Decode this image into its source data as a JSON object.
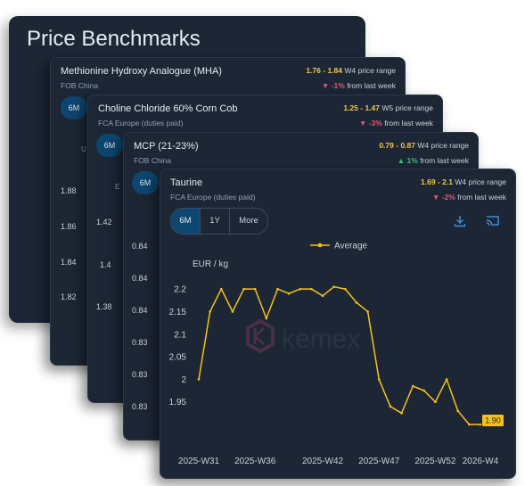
{
  "page": {
    "title": "Price Benchmarks"
  },
  "cards": [
    {
      "name": "Methionine Hydroxy Analogue (MHA)",
      "location": "FOB China",
      "range_low": "1.76",
      "range_high": "1.84",
      "range_suffix": "W4 price range",
      "change_arrow": "▼",
      "change_pct": "-1%",
      "change_suffix": "from last week",
      "tab": "6M",
      "y_ticks": [
        "1.88",
        "1.86",
        "1.84",
        "1.82"
      ]
    },
    {
      "name": "Choline Chloride 60% Corn Cob",
      "location": "FCA Europe (duties paid)",
      "range_low": "1.25",
      "range_high": "1.47",
      "range_suffix": "W5 price range",
      "change_arrow": "▼",
      "change_pct": "-3%",
      "change_suffix": "from last week",
      "tab": "6M",
      "y_ticks": [
        "1.42",
        "1.4",
        "1.38"
      ]
    },
    {
      "name": "MCP (21-23%)",
      "location": "FOB China",
      "range_low": "0.79",
      "range_high": "0.87",
      "range_suffix": "W4 price range",
      "change_arrow": "▲",
      "change_pct": "1%",
      "change_suffix": "from last week",
      "tab": "6M",
      "y_ticks": [
        "0.84",
        "0.84",
        "0.84",
        "0.83",
        "0.83",
        "0.83"
      ]
    },
    {
      "name": "Taurine",
      "location": "FCA Europe (duties paid)",
      "range_low": "1.69",
      "range_high": "2.1",
      "range_suffix": "W4 price range",
      "change_arrow": "▼",
      "change_pct": "-2%",
      "change_suffix": "from last week"
    }
  ],
  "tabs": [
    "6M",
    "1Y",
    "More"
  ],
  "icons": {
    "download": "download-icon",
    "cast": "cast-icon"
  },
  "watermark": {
    "brand": "kemex"
  },
  "colors": {
    "panel_bg": "#1c2635",
    "line": "#f5c21b",
    "active_tab": "#0d4670",
    "price": "#f3c647",
    "down": "#e0577a",
    "up": "#33c26b"
  },
  "chart_data": {
    "type": "line",
    "legend": "Average",
    "legend_position": "top-center",
    "ylabel": "EUR / kg",
    "ylim": [
      1.9,
      2.22
    ],
    "y_ticks": [
      1.95,
      2,
      2.05,
      2.1,
      2.15,
      2.2
    ],
    "y_tick_labels": [
      "1.95",
      "2",
      "2.05",
      "2.1",
      "2.15",
      "2.2"
    ],
    "x": [
      "2025-W31",
      "2025-W32",
      "2025-W33",
      "2025-W34",
      "2025-W35",
      "2025-W36",
      "2025-W37",
      "2025-W38",
      "2025-W39",
      "2025-W40",
      "2025-W41",
      "2025-W42",
      "2025-W43",
      "2025-W44",
      "2025-W45",
      "2025-W46",
      "2025-W47",
      "2025-W48",
      "2025-W49",
      "2025-W50",
      "2025-W51",
      "2025-W52",
      "2026-W1",
      "2026-W2",
      "2026-W3",
      "2026-W4"
    ],
    "x_tick_labels": [
      "2025-W31",
      "2025-W36",
      "2025-W42",
      "2025-W47",
      "2025-W52",
      "2026-W4"
    ],
    "series": [
      {
        "name": "Average",
        "values": [
          2.0,
          2.15,
          2.2,
          2.15,
          2.2,
          2.2,
          2.135,
          2.2,
          2.19,
          2.2,
          2.2,
          2.185,
          2.205,
          2.2,
          2.17,
          2.15,
          2.0,
          1.94,
          1.925,
          1.985,
          1.975,
          1.95,
          2.0,
          1.93,
          1.9,
          1.9
        ]
      }
    ],
    "last_value_label": "1.90",
    "grid": false
  }
}
